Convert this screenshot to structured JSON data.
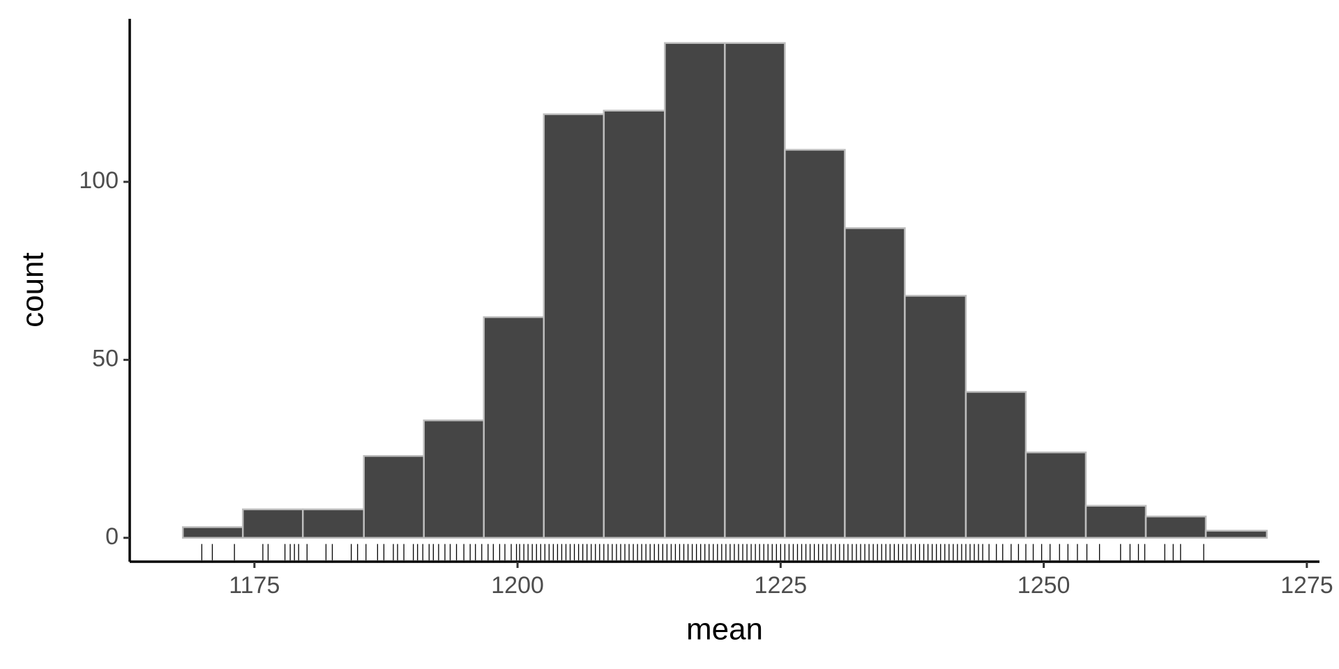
{
  "chart_data": {
    "type": "histogram",
    "x_label": "mean",
    "y_label": "count",
    "bins": [
      1168.2,
      1173.9,
      1179.6,
      1185.4,
      1191.1,
      1196.8,
      1202.5,
      1208.2,
      1214.0,
      1219.7,
      1225.4,
      1231.1,
      1236.8,
      1242.6,
      1248.3,
      1254.0,
      1259.7,
      1265.4,
      1271.2
    ],
    "values": [
      3,
      8,
      8,
      23,
      33,
      62,
      119,
      120,
      139,
      139,
      109,
      87,
      68,
      41,
      24,
      9,
      6,
      2
    ],
    "color": "#454545",
    "edge_color": "#bdbdbd",
    "rug": [
      1170.0,
      1171.0,
      1173.1,
      1175.8,
      1176.3,
      1177.9,
      1178.4,
      1178.8,
      1179.2,
      1180.0,
      1181.8,
      1182.4,
      1184.2,
      1184.8,
      1185.6,
      1186.7,
      1187.3,
      1188.2,
      1188.6,
      1189.2,
      1190.1,
      1190.5,
      1191.0,
      1191.6,
      1192.0,
      1192.5,
      1193.1,
      1193.6,
      1194.2,
      1194.9,
      1195.5,
      1196.0,
      1196.6,
      1197.2,
      1197.7,
      1198.3,
      1198.8,
      1199.4,
      1199.9,
      1200.2,
      1200.6,
      1201.0,
      1201.4,
      1201.8,
      1202.2,
      1202.6,
      1203.0,
      1203.4,
      1203.8,
      1204.2,
      1204.6,
      1205.0,
      1205.4,
      1205.8,
      1206.2,
      1206.6,
      1207.0,
      1207.4,
      1207.8,
      1208.2,
      1208.6,
      1209.0,
      1209.4,
      1209.8,
      1210.2,
      1210.6,
      1211.0,
      1211.4,
      1211.8,
      1212.2,
      1212.6,
      1213.0,
      1213.4,
      1213.8,
      1214.2,
      1214.6,
      1215.0,
      1215.4,
      1215.8,
      1216.2,
      1216.6,
      1217.0,
      1217.4,
      1217.8,
      1218.2,
      1218.6,
      1219.0,
      1219.4,
      1219.8,
      1220.2,
      1220.6,
      1221.0,
      1221.4,
      1221.8,
      1222.2,
      1222.6,
      1223.0,
      1223.4,
      1223.8,
      1224.2,
      1224.6,
      1225.0,
      1225.4,
      1225.8,
      1226.2,
      1226.6,
      1227.0,
      1227.4,
      1227.8,
      1228.2,
      1228.6,
      1229.0,
      1229.4,
      1229.8,
      1230.2,
      1230.6,
      1231.0,
      1231.4,
      1231.8,
      1232.2,
      1232.6,
      1233.0,
      1233.4,
      1233.8,
      1234.2,
      1234.6,
      1235.0,
      1235.4,
      1235.8,
      1236.2,
      1236.6,
      1237.0,
      1237.4,
      1237.8,
      1238.2,
      1238.6,
      1239.0,
      1239.4,
      1239.8,
      1240.2,
      1240.6,
      1241.0,
      1241.4,
      1241.8,
      1242.2,
      1242.6,
      1243.0,
      1243.4,
      1243.8,
      1244.2,
      1244.8,
      1245.5,
      1246.1,
      1246.9,
      1247.6,
      1248.3,
      1249.0,
      1249.8,
      1250.6,
      1251.5,
      1252.3,
      1253.2,
      1254.1,
      1255.3,
      1257.3,
      1258.2,
      1259.0,
      1259.6,
      1261.5,
      1262.3,
      1263.0,
      1265.2
    ],
    "rug_color": "#000000",
    "xlim": [
      1163.15,
      1276.2
    ],
    "xticks": [
      1175,
      1200,
      1225,
      1250,
      1275
    ],
    "ylim": [
      -6.7,
      145.8
    ],
    "yticks": [
      0,
      50,
      100
    ],
    "grid": false
  }
}
